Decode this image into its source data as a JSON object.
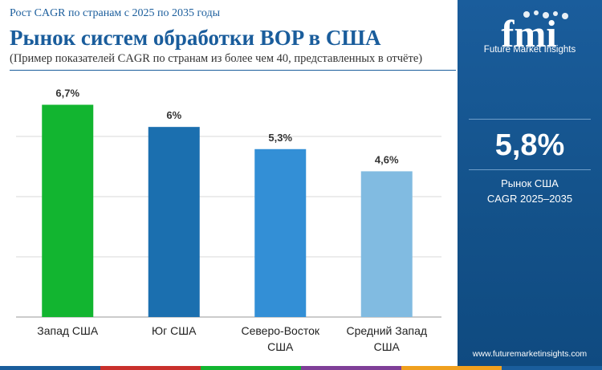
{
  "header": {
    "supertitle": "Рост CAGR по странам с 2025 по 2035 годы",
    "title": "Рынок систем обработки BOP в США",
    "subtitle": "(Пример показателей CAGR по странам из более чем 40, представленных в отчёте)"
  },
  "chart_data": {
    "type": "bar",
    "categories": [
      "Запад США",
      "Юг США",
      "Северо-Восток США",
      "Средний Запад США"
    ],
    "category_lines": [
      [
        "Запад США"
      ],
      [
        "Юг США"
      ],
      [
        "Северо-Восток",
        "США"
      ],
      [
        "Средний Запад",
        "США"
      ]
    ],
    "values": [
      6.7,
      6.0,
      5.3,
      4.6
    ],
    "value_labels": [
      "6,7%",
      "6%",
      "5,3%",
      "4,6%"
    ],
    "colors": [
      "#12b530",
      "#1b6faf",
      "#338fd6",
      "#81bbe1"
    ],
    "ylim": [
      0,
      7.6
    ],
    "grid": true,
    "grid_values": [
      0,
      1.9,
      3.8,
      5.7
    ],
    "title": "",
    "xlabel": "",
    "ylabel": ""
  },
  "sidebar": {
    "logo_letters": "fmi",
    "brand": "Future Market Insights",
    "stat_value": "5,8%",
    "stat_label_line1": "Рынок США",
    "stat_label_line2": "CAGR 2025–2035",
    "url": "www.futuremarketinsights.com"
  },
  "colors": {
    "accent": "#1a5d9c",
    "panel": "#135189",
    "stripe": [
      "#1a5d9c",
      "#c9302c",
      "#12b530",
      "#7f3f98",
      "#f0a01e",
      "#1a5d9c"
    ]
  }
}
